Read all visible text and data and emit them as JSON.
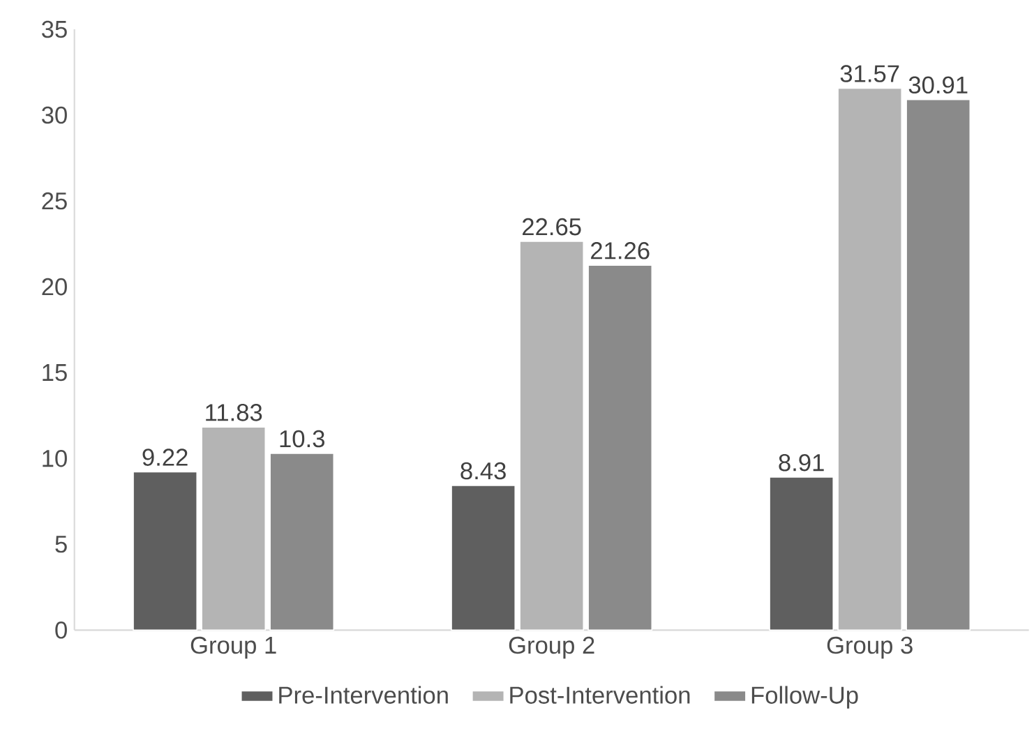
{
  "chart_data": {
    "type": "bar",
    "categories": [
      "Group 1",
      "Group 2",
      "Group 3"
    ],
    "series": [
      {
        "name": "Pre-Intervention",
        "color": "#5f5f5f",
        "values": [
          9.22,
          8.43,
          8.91
        ]
      },
      {
        "name": "Post-Intervention",
        "color": "#b4b4b4",
        "values": [
          11.83,
          22.65,
          31.57
        ]
      },
      {
        "name": "Follow-Up",
        "color": "#8a8a8a",
        "values": [
          10.3,
          21.26,
          30.91
        ]
      }
    ],
    "ylim": [
      0,
      35
    ],
    "yticks": [
      0,
      5,
      10,
      15,
      20,
      25,
      30,
      35
    ],
    "data_labels": true,
    "legend": "bottom",
    "grid": false
  }
}
